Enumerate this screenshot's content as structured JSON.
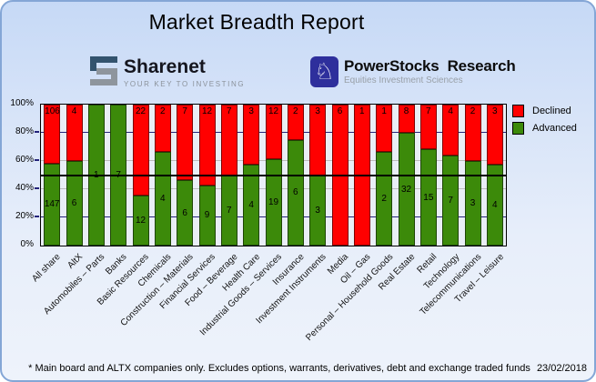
{
  "title": "Market Breadth Report",
  "logos": {
    "sharenet": {
      "name": "Sharenet",
      "tagline": "YOUR KEY TO INVESTING"
    },
    "powerstocks": {
      "word1": "PowerStocks",
      "word2": "Research",
      "tagline": "Equities Investment Sciences",
      "knight_icon": "♘"
    }
  },
  "footer": {
    "note": "* Main board and ALTX companies only. Excludes options, warrants, derivatives, debt and exchange traded funds",
    "date": "23/02/2018"
  },
  "chart_data": {
    "type": "bar",
    "stacked": true,
    "normalized_to_100_percent": true,
    "title": "Market Breadth Report",
    "categories": [
      "All share",
      "AltX",
      "Automobiles – Parts",
      "Banks",
      "Basic Resources",
      "Chemicals",
      "Construction – Materials",
      "Financial Services",
      "Food – Beverage",
      "Health Care",
      "Industrial Goods – Services",
      "Insurance",
      "Investment Instruments",
      "Media",
      "Oil – Gas",
      "Personal – Household Goods",
      "Real Estate",
      "Retail",
      "Technology",
      "Telecommunications",
      "Travel – Leisure"
    ],
    "series": [
      {
        "name": "Declined",
        "color": "#ff0000",
        "values": [
          106,
          4,
          0,
          0,
          22,
          2,
          7,
          12,
          7,
          3,
          12,
          2,
          3,
          6,
          1,
          1,
          8,
          7,
          4,
          2,
          3
        ]
      },
      {
        "name": "Advanced",
        "color": "#3c8a0a",
        "values": [
          147,
          6,
          1,
          7,
          12,
          4,
          6,
          9,
          7,
          4,
          19,
          6,
          3,
          0,
          0,
          2,
          32,
          15,
          7,
          3,
          4
        ]
      }
    ],
    "value_axis": {
      "tick_labels": [
        "0%",
        "20%",
        "40%",
        "60%",
        "80%",
        "100%"
      ],
      "range": [
        0,
        100
      ]
    },
    "reference_line_pct": 50,
    "legend_position": "top-right",
    "gridlines": [
      {
        "pct": 20,
        "color": "#23237a"
      },
      {
        "pct": 40,
        "color": "#bcbcbc"
      },
      {
        "pct": 60,
        "color": "#bcbcbc"
      },
      {
        "pct": 80,
        "color": "#23237a"
      }
    ]
  }
}
